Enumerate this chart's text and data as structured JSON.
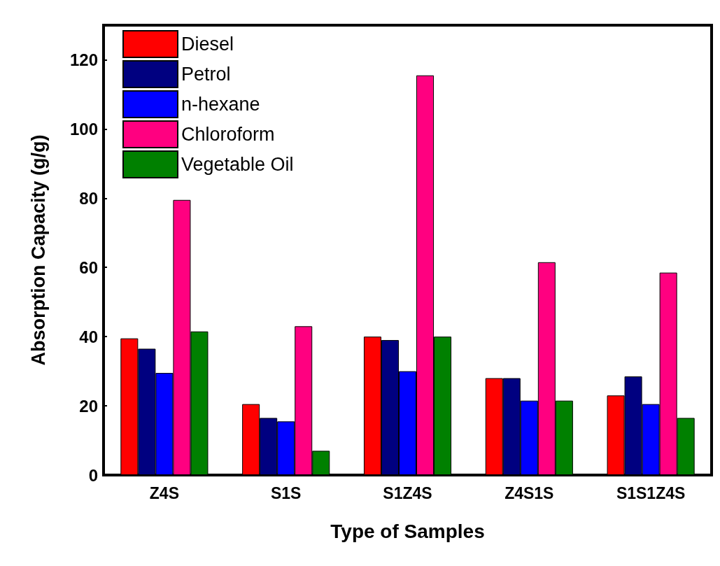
{
  "chart_data": {
    "type": "bar",
    "xlabel": "Type of Samples",
    "ylabel": "Absorption Capacity (g/g)",
    "categories": [
      "Z4S",
      "S1S",
      "S1Z4S",
      "Z4S1S",
      "S1S1Z4S"
    ],
    "series": [
      {
        "name": "Diesel",
        "color": "#ff0000",
        "values": [
          39.5,
          20.5,
          40,
          28,
          23
        ]
      },
      {
        "name": "Petrol",
        "color": "#000080",
        "values": [
          36.5,
          16.5,
          39,
          28,
          28.5
        ]
      },
      {
        "name": "n-hexane",
        "color": "#0000ff",
        "values": [
          29.5,
          15.5,
          30,
          21.5,
          20.5
        ]
      },
      {
        "name": "Chloroform",
        "color": "#ff0080",
        "values": [
          79.5,
          43,
          115.5,
          61.5,
          58.5
        ]
      },
      {
        "name": "Vegetable Oil",
        "color": "#008000",
        "values": [
          41.5,
          7,
          40,
          21.5,
          16.5
        ]
      }
    ],
    "ylim": [
      0,
      130
    ],
    "yticks": [
      0,
      20,
      40,
      60,
      80,
      100,
      120
    ],
    "grid": false,
    "legend": "top left"
  }
}
